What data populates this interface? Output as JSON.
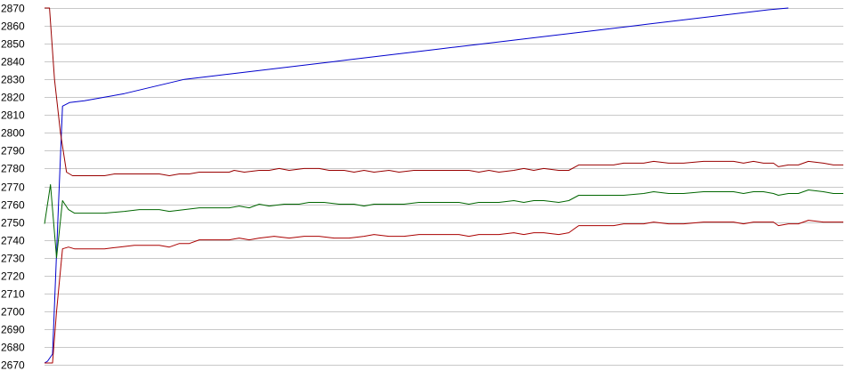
{
  "chart_data": {
    "type": "line",
    "title": "",
    "xlabel": "",
    "ylabel": "",
    "ylim": [
      2670,
      2870
    ],
    "y_ticks": [
      2670,
      2680,
      2690,
      2700,
      2710,
      2720,
      2730,
      2740,
      2750,
      2760,
      2770,
      2780,
      2790,
      2800,
      2810,
      2820,
      2830,
      2840,
      2850,
      2860,
      2870
    ],
    "grid": true,
    "legend": "none",
    "x_count": 155,
    "series": [
      {
        "color": "#0000cc",
        "points": [
          [
            0,
            2671
          ],
          [
            3,
            2672
          ],
          [
            8,
            2676
          ],
          [
            14,
            2760
          ],
          [
            18,
            2815
          ],
          [
            25,
            2817
          ],
          [
            40,
            2818
          ],
          [
            60,
            2820
          ],
          [
            80,
            2822
          ],
          [
            95,
            2824
          ],
          [
            110,
            2826
          ],
          [
            125,
            2828
          ],
          [
            140,
            2830
          ],
          [
            155,
            2831
          ],
          [
            170,
            2832
          ],
          [
            185,
            2833
          ],
          [
            200,
            2834
          ],
          [
            215,
            2835
          ],
          [
            230,
            2836
          ],
          [
            245,
            2837
          ],
          [
            260,
            2838
          ],
          [
            275,
            2839
          ],
          [
            290,
            2840
          ],
          [
            305,
            2841
          ],
          [
            320,
            2842
          ],
          [
            335,
            2843
          ],
          [
            350,
            2844
          ],
          [
            365,
            2845
          ],
          [
            380,
            2846
          ],
          [
            395,
            2847
          ],
          [
            410,
            2848
          ],
          [
            425,
            2849
          ],
          [
            440,
            2850
          ],
          [
            455,
            2851
          ],
          [
            470,
            2852
          ],
          [
            485,
            2853
          ],
          [
            500,
            2854
          ],
          [
            515,
            2855
          ],
          [
            530,
            2856
          ],
          [
            545,
            2857
          ],
          [
            560,
            2858
          ],
          [
            575,
            2859
          ],
          [
            590,
            2860
          ],
          [
            605,
            2861
          ],
          [
            620,
            2862
          ],
          [
            635,
            2863
          ],
          [
            650,
            2864
          ],
          [
            665,
            2865
          ],
          [
            680,
            2866
          ],
          [
            695,
            2867
          ],
          [
            710,
            2868
          ],
          [
            725,
            2869
          ],
          [
            745,
            2870
          ]
        ]
      },
      {
        "color": "#990000",
        "points": [
          [
            0,
            2870
          ],
          [
            5,
            2870
          ],
          [
            10,
            2830
          ],
          [
            16,
            2800
          ],
          [
            22,
            2778
          ],
          [
            28,
            2776
          ],
          [
            60,
            2776
          ],
          [
            70,
            2777
          ],
          [
            90,
            2777
          ],
          [
            115,
            2777
          ],
          [
            125,
            2776
          ],
          [
            135,
            2777
          ],
          [
            145,
            2777
          ],
          [
            155,
            2778
          ],
          [
            185,
            2778
          ],
          [
            190,
            2779
          ],
          [
            200,
            2778
          ],
          [
            215,
            2779
          ],
          [
            225,
            2779
          ],
          [
            235,
            2780
          ],
          [
            245,
            2779
          ],
          [
            260,
            2780
          ],
          [
            275,
            2780
          ],
          [
            285,
            2779
          ],
          [
            300,
            2779
          ],
          [
            310,
            2778
          ],
          [
            320,
            2779
          ],
          [
            330,
            2778
          ],
          [
            345,
            2779
          ],
          [
            355,
            2778
          ],
          [
            370,
            2779
          ],
          [
            385,
            2779
          ],
          [
            405,
            2779
          ],
          [
            415,
            2779
          ],
          [
            425,
            2779
          ],
          [
            435,
            2778
          ],
          [
            445,
            2779
          ],
          [
            455,
            2778
          ],
          [
            470,
            2779
          ],
          [
            480,
            2780
          ],
          [
            490,
            2779
          ],
          [
            500,
            2780
          ],
          [
            515,
            2779
          ],
          [
            525,
            2779
          ],
          [
            535,
            2782
          ],
          [
            545,
            2782
          ],
          [
            570,
            2782
          ],
          [
            580,
            2783
          ],
          [
            600,
            2783
          ],
          [
            610,
            2784
          ],
          [
            625,
            2783
          ],
          [
            640,
            2783
          ],
          [
            660,
            2784
          ],
          [
            690,
            2784
          ],
          [
            700,
            2783
          ],
          [
            710,
            2784
          ],
          [
            720,
            2783
          ],
          [
            730,
            2783
          ],
          [
            735,
            2781
          ],
          [
            745,
            2782
          ],
          [
            755,
            2782
          ],
          [
            765,
            2784
          ],
          [
            780,
            2783
          ],
          [
            790,
            2782
          ],
          [
            800,
            2782
          ]
        ]
      },
      {
        "color": "#006600",
        "points": [
          [
            0,
            2749
          ],
          [
            6,
            2771
          ],
          [
            12,
            2730
          ],
          [
            18,
            2762
          ],
          [
            24,
            2757
          ],
          [
            30,
            2755
          ],
          [
            60,
            2755
          ],
          [
            80,
            2756
          ],
          [
            95,
            2757
          ],
          [
            115,
            2757
          ],
          [
            125,
            2756
          ],
          [
            140,
            2757
          ],
          [
            155,
            2758
          ],
          [
            185,
            2758
          ],
          [
            195,
            2759
          ],
          [
            205,
            2758
          ],
          [
            215,
            2760
          ],
          [
            225,
            2759
          ],
          [
            240,
            2760
          ],
          [
            255,
            2760
          ],
          [
            265,
            2761
          ],
          [
            280,
            2761
          ],
          [
            295,
            2760
          ],
          [
            310,
            2760
          ],
          [
            320,
            2759
          ],
          [
            330,
            2760
          ],
          [
            345,
            2760
          ],
          [
            360,
            2760
          ],
          [
            375,
            2761
          ],
          [
            395,
            2761
          ],
          [
            415,
            2761
          ],
          [
            425,
            2760
          ],
          [
            435,
            2761
          ],
          [
            445,
            2761
          ],
          [
            455,
            2761
          ],
          [
            470,
            2762
          ],
          [
            480,
            2761
          ],
          [
            490,
            2762
          ],
          [
            500,
            2762
          ],
          [
            515,
            2761
          ],
          [
            525,
            2762
          ],
          [
            535,
            2765
          ],
          [
            545,
            2765
          ],
          [
            570,
            2765
          ],
          [
            580,
            2765
          ],
          [
            600,
            2766
          ],
          [
            610,
            2767
          ],
          [
            625,
            2766
          ],
          [
            640,
            2766
          ],
          [
            660,
            2767
          ],
          [
            690,
            2767
          ],
          [
            700,
            2766
          ],
          [
            710,
            2767
          ],
          [
            720,
            2767
          ],
          [
            730,
            2766
          ],
          [
            735,
            2765
          ],
          [
            745,
            2766
          ],
          [
            755,
            2766
          ],
          [
            765,
            2768
          ],
          [
            780,
            2767
          ],
          [
            790,
            2766
          ],
          [
            800,
            2766
          ]
        ]
      },
      {
        "color": "#aa0000",
        "points": [
          [
            0,
            2671
          ],
          [
            8,
            2671
          ],
          [
            12,
            2700
          ],
          [
            18,
            2735
          ],
          [
            24,
            2736
          ],
          [
            30,
            2735
          ],
          [
            60,
            2735
          ],
          [
            75,
            2736
          ],
          [
            90,
            2737
          ],
          [
            115,
            2737
          ],
          [
            125,
            2736
          ],
          [
            135,
            2738
          ],
          [
            145,
            2738
          ],
          [
            155,
            2740
          ],
          [
            185,
            2740
          ],
          [
            195,
            2741
          ],
          [
            205,
            2740
          ],
          [
            215,
            2741
          ],
          [
            230,
            2742
          ],
          [
            245,
            2741
          ],
          [
            260,
            2742
          ],
          [
            275,
            2742
          ],
          [
            290,
            2741
          ],
          [
            305,
            2741
          ],
          [
            320,
            2742
          ],
          [
            330,
            2743
          ],
          [
            345,
            2742
          ],
          [
            360,
            2742
          ],
          [
            375,
            2743
          ],
          [
            395,
            2743
          ],
          [
            415,
            2743
          ],
          [
            425,
            2742
          ],
          [
            435,
            2743
          ],
          [
            445,
            2743
          ],
          [
            455,
            2743
          ],
          [
            470,
            2744
          ],
          [
            480,
            2743
          ],
          [
            490,
            2744
          ],
          [
            500,
            2744
          ],
          [
            515,
            2743
          ],
          [
            525,
            2744
          ],
          [
            535,
            2748
          ],
          [
            545,
            2748
          ],
          [
            570,
            2748
          ],
          [
            580,
            2749
          ],
          [
            600,
            2749
          ],
          [
            610,
            2750
          ],
          [
            625,
            2749
          ],
          [
            640,
            2749
          ],
          [
            660,
            2750
          ],
          [
            690,
            2750
          ],
          [
            700,
            2749
          ],
          [
            710,
            2750
          ],
          [
            720,
            2750
          ],
          [
            730,
            2750
          ],
          [
            735,
            2748
          ],
          [
            745,
            2749
          ],
          [
            755,
            2749
          ],
          [
            765,
            2751
          ],
          [
            780,
            2750
          ],
          [
            790,
            2750
          ],
          [
            800,
            2750
          ]
        ]
      }
    ]
  }
}
